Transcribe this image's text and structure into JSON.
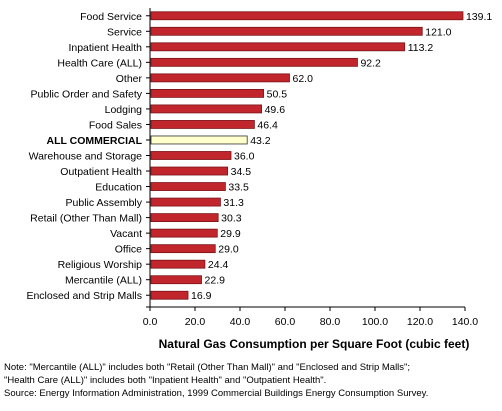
{
  "chart_data": {
    "type": "bar",
    "orientation": "horizontal",
    "categories": [
      "Food Service",
      "Service",
      "Inpatient Health",
      "Health Care (ALL)",
      "Other",
      "Public Order and Safety",
      "Lodging",
      "Food Sales",
      "ALL COMMERCIAL",
      "Warehouse and Storage",
      "Outpatient Health",
      "Education",
      "Public Assembly",
      "Retail (Other Than Mall)",
      "Vacant",
      "Office",
      "Religious Worship",
      "Mercantile (ALL)",
      "Enclosed and Strip Malls"
    ],
    "values": [
      139.1,
      121.0,
      113.2,
      92.2,
      62.0,
      50.5,
      49.6,
      46.4,
      43.2,
      36.0,
      34.5,
      33.5,
      31.3,
      30.3,
      29.9,
      29.0,
      24.4,
      22.9,
      16.9
    ],
    "value_labels": [
      "139.1",
      "121.0",
      "113.2",
      "92.2",
      "62.0",
      "50.5",
      "49.6",
      "46.4",
      "43.2",
      "36.0",
      "34.5",
      "33.5",
      "31.3",
      "30.3",
      "29.9",
      "29.0",
      "24.4",
      "22.9",
      "16.9"
    ],
    "highlight_category": "ALL COMMERCIAL",
    "xlabel": "Natural Gas Consumption per Square Foot (cubic feet)",
    "xlim": [
      0,
      140
    ],
    "xticks": [
      "0.0",
      "20.0",
      "40.0",
      "60.0",
      "80.0",
      "100.0",
      "120.0",
      "140.0"
    ],
    "grid": false,
    "colors": {
      "bar": "#c0262c",
      "highlight_bar": "#ffffcc",
      "bar_stroke": "#000000"
    }
  },
  "notes": {
    "line1": "Note: \"Mercantile (ALL)\" includes both \"Retail (Other Than Mall)\" and \"Enclosed and Strip Malls\";",
    "line2": "\"Health Care (ALL)\" includes both \"Inpatient Health\" and \"Outpatient Health\".",
    "line3": "Source: Energy Information Administration, 1999 Commercial Buildings Energy Consumption Survey."
  }
}
